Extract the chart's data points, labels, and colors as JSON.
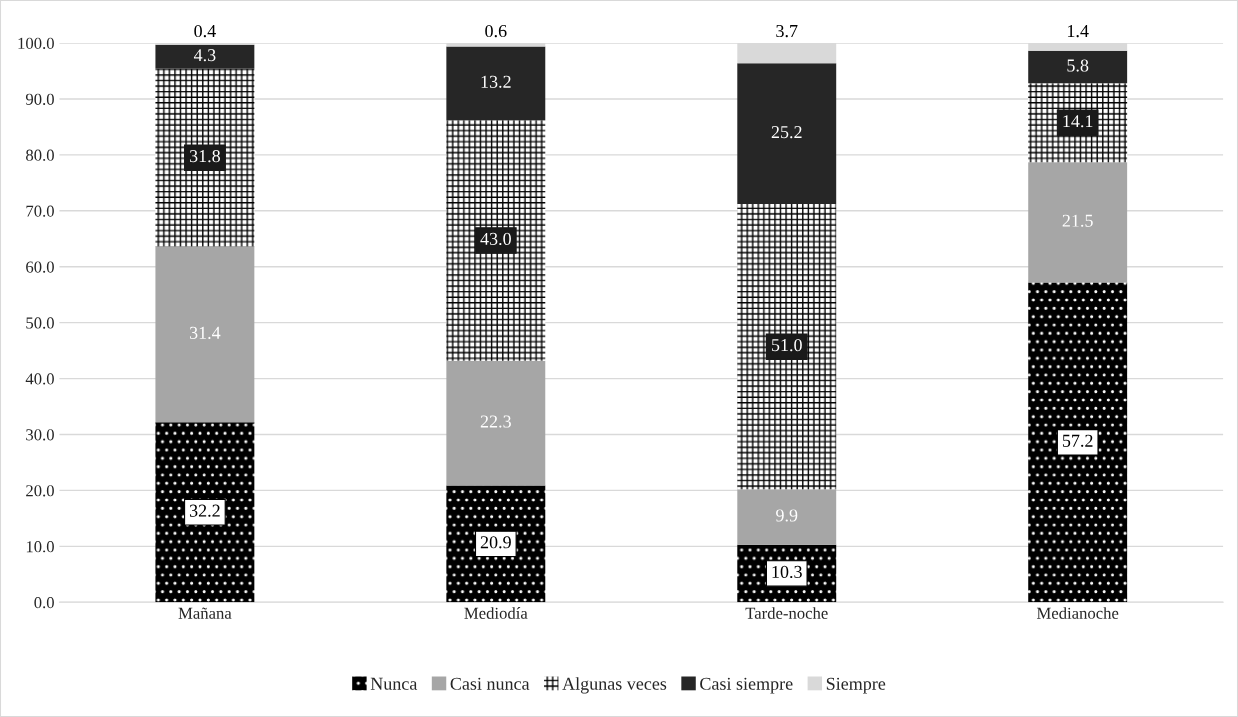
{
  "chart_data": {
    "type": "bar",
    "stacked": true,
    "categories": [
      "Mañana",
      "Mediodía",
      "Tarde-noche",
      "Medianoche"
    ],
    "series": [
      {
        "name": "Nunca",
        "color": "#000000",
        "values": [
          32.2,
          20.9,
          10.3,
          57.2
        ],
        "value_labels": [
          "32.2",
          "20.9",
          "10.3",
          "57.2"
        ]
      },
      {
        "name": "Casi nunca",
        "color": "#a6a6a6",
        "values": [
          31.4,
          22.3,
          9.9,
          21.5
        ],
        "value_labels": [
          "31.4",
          "22.3",
          "9.9",
          "21.5"
        ]
      },
      {
        "name": "Algunas veces",
        "color": "#ffffff",
        "values": [
          31.8,
          43.0,
          51.0,
          14.1
        ],
        "value_labels": [
          "31.8",
          "43.0",
          "51.0",
          "14.1"
        ]
      },
      {
        "name": "Casi siempre",
        "color": "#262626",
        "values": [
          4.3,
          13.2,
          25.2,
          5.8
        ],
        "value_labels": [
          "4.3",
          "13.2",
          "25.2",
          "5.8"
        ]
      },
      {
        "name": "Siempre",
        "color": "#d9d9d9",
        "values": [
          0.4,
          0.6,
          3.7,
          1.4
        ],
        "value_labels": [
          "0.4",
          "0.6",
          "3.7",
          "1.4"
        ]
      }
    ],
    "ylim": [
      0,
      100
    ],
    "yticks": [
      {
        "value": 0,
        "label": "0.0"
      },
      {
        "value": 10,
        "label": "10.0"
      },
      {
        "value": 20,
        "label": "20.0"
      },
      {
        "value": 30,
        "label": "30.0"
      },
      {
        "value": 40,
        "label": "40.0"
      },
      {
        "value": 50,
        "label": "50.0"
      },
      {
        "value": 60,
        "label": "60.0"
      },
      {
        "value": 70,
        "label": "70.0"
      },
      {
        "value": 80,
        "label": "80.0"
      },
      {
        "value": 90,
        "label": "90.0"
      },
      {
        "value": 100,
        "label": "100.0"
      }
    ],
    "grid": "y",
    "legend": "bottom"
  }
}
